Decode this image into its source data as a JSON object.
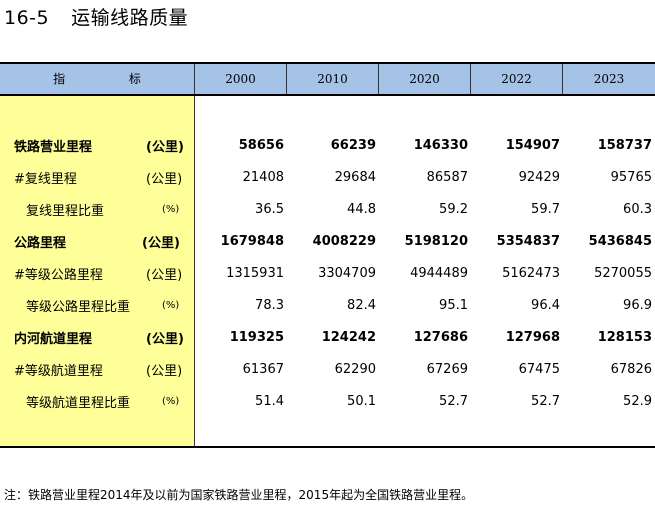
{
  "title": {
    "number": "16-5",
    "text": "运输线路质量"
  },
  "header": {
    "indicator_chars": [
      "指",
      "标"
    ],
    "years": [
      "2000",
      "2010",
      "2020",
      "2022",
      "2023"
    ]
  },
  "rows": [
    {
      "label": "铁路营业里程",
      "unit": "(公里)",
      "values": [
        "58656",
        "66239",
        "146330",
        "154907",
        "158737"
      ]
    },
    {
      "label": "#复线里程",
      "unit": "(公里)",
      "values": [
        "21408",
        "29684",
        "86587",
        "92429",
        "95765"
      ]
    },
    {
      "label": "复线里程比重",
      "unit": "(%)",
      "values": [
        "36.5",
        "44.8",
        "59.2",
        "59.7",
        "60.3"
      ]
    },
    {
      "label": "公路里程",
      "unit": "(公里)",
      "values": [
        "1679848",
        "4008229",
        "5198120",
        "5354837",
        "5436845"
      ]
    },
    {
      "label": "#等级公路里程",
      "unit": "(公里)",
      "values": [
        "1315931",
        "3304709",
        "4944489",
        "5162473",
        "5270055"
      ]
    },
    {
      "label": "等级公路里程比重",
      "unit": "(%)",
      "values": [
        "78.3",
        "82.4",
        "95.1",
        "96.4",
        "96.9"
      ]
    },
    {
      "label": "内河航道里程",
      "unit": "(公里)",
      "values": [
        "119325",
        "124242",
        "127686",
        "127968",
        "128153"
      ]
    },
    {
      "label": "#等级航道里程",
      "unit": "(公里)",
      "values": [
        "61367",
        "62290",
        "67269",
        "67475",
        "67826"
      ]
    },
    {
      "label": "等级航道里程比重",
      "unit": "(%)",
      "values": [
        "51.4",
        "50.1",
        "52.7",
        "52.7",
        "52.9"
      ]
    }
  ],
  "note": "注：铁路营业里程2014年及以前为国家铁路营业里程，2015年起为全国铁路营业里程。"
}
